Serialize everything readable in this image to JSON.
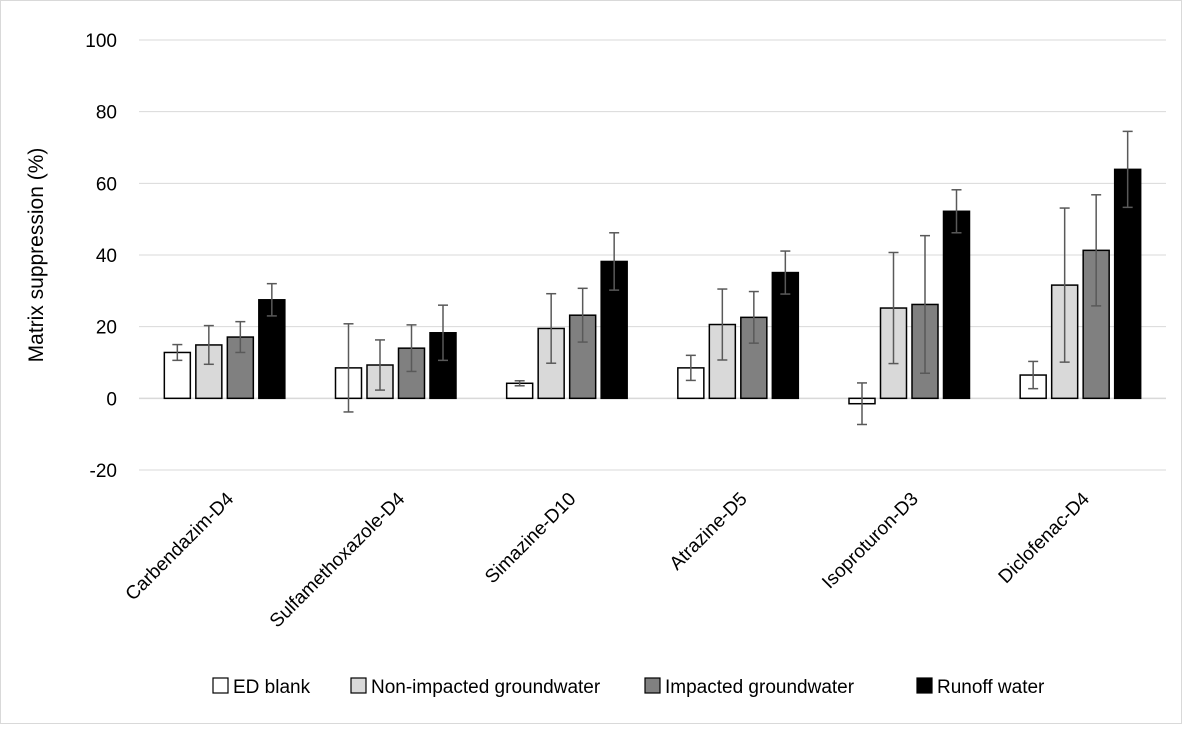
{
  "chart_data": {
    "type": "bar",
    "title": "",
    "xlabel": "",
    "ylabel": "Matrix suppression (%)",
    "ylim": [
      -20,
      100
    ],
    "yticks": [
      -20,
      0,
      20,
      40,
      60,
      80,
      100
    ],
    "grid": true,
    "legend_position": "bottom",
    "categories": [
      "Carbendazim-D4",
      "Sulfamethoxazole-D4",
      "Simazine-D10",
      "Atrazine-D5",
      "Isoproturon-D3",
      "Diclofenac-D4"
    ],
    "series": [
      {
        "name": "ED blank",
        "fill": "#ffffff",
        "values": [
          12.8,
          8.5,
          4.2,
          8.5,
          -1.5,
          6.5
        ],
        "errors": [
          2.2,
          12.3,
          0.7,
          3.5,
          5.8,
          3.8
        ]
      },
      {
        "name": "Non-impacted groundwater",
        "fill": "#d9d9d9",
        "values": [
          14.9,
          9.3,
          19.5,
          20.6,
          25.2,
          31.6
        ],
        "errors": [
          5.4,
          7.0,
          9.7,
          9.9,
          15.5,
          21.5
        ]
      },
      {
        "name": "Impacted groundwater",
        "fill": "#808080",
        "values": [
          17.1,
          14.0,
          23.2,
          22.6,
          26.2,
          41.3
        ],
        "errors": [
          4.3,
          6.5,
          7.5,
          7.2,
          19.2,
          15.5
        ]
      },
      {
        "name": "Runoff water",
        "fill": "#000000",
        "values": [
          27.5,
          18.3,
          38.2,
          35.1,
          52.2,
          63.9
        ],
        "errors": [
          4.5,
          7.7,
          8.0,
          6.0,
          6.0,
          10.6
        ]
      }
    ]
  }
}
